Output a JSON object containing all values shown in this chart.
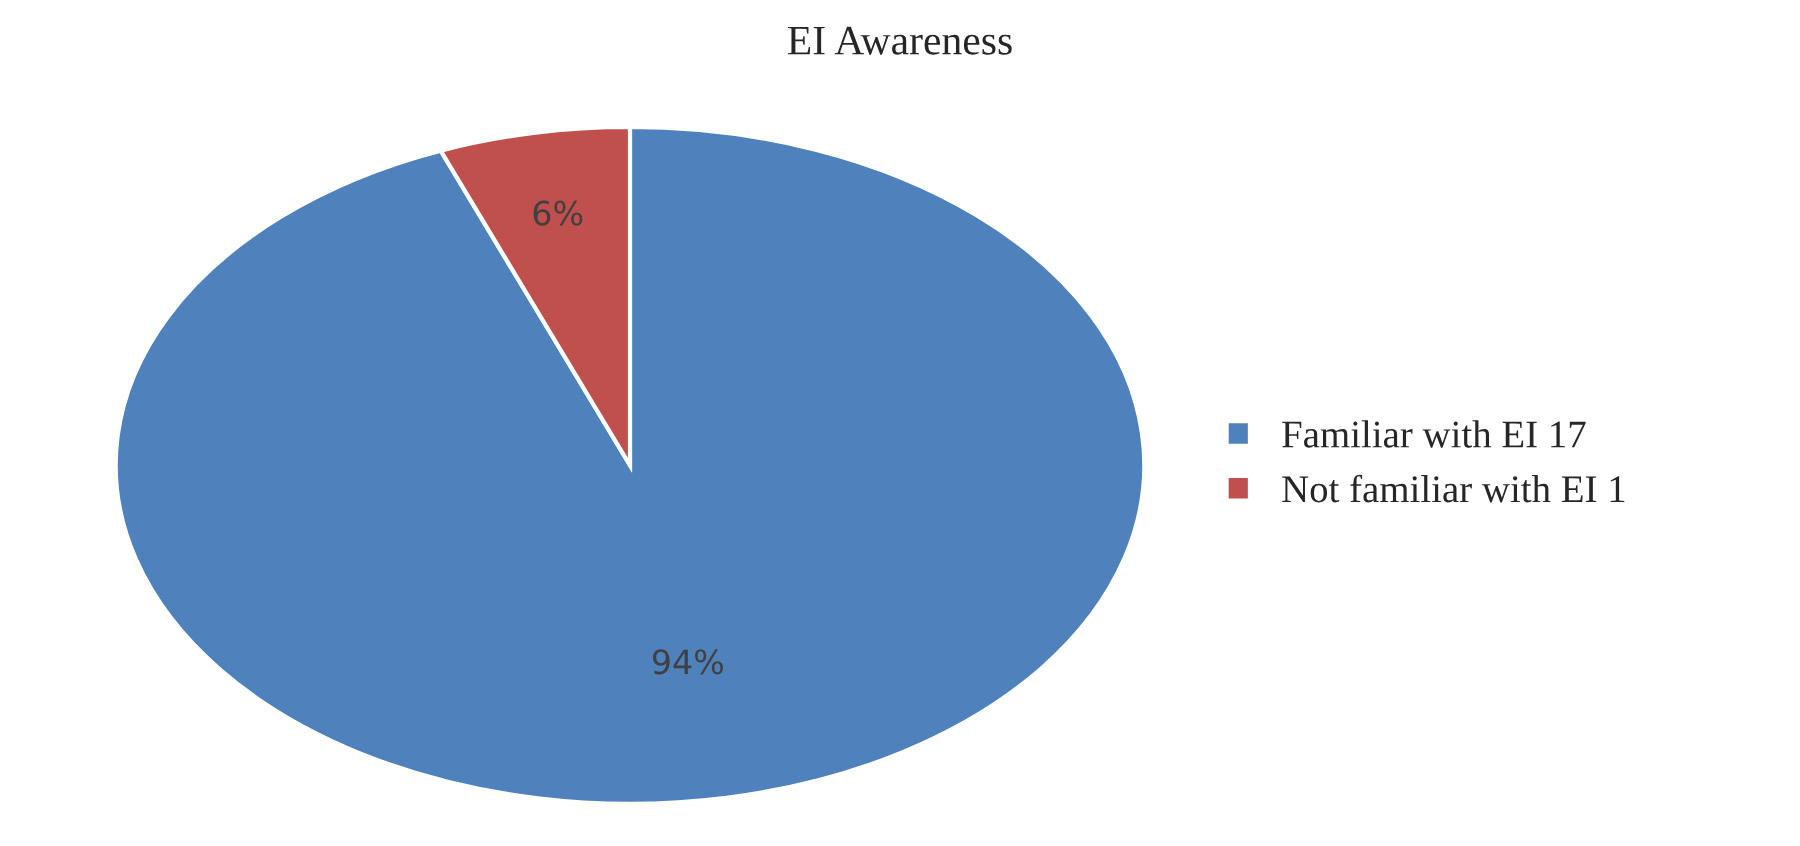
{
  "chart_data": {
    "type": "pie",
    "title": "EI Awareness",
    "categories": [
      "Familiar with EI 17",
      "Not familiar with EI 1"
    ],
    "values": [
      94,
      6
    ],
    "colors": [
      "#4f81bd",
      "#c0504d"
    ],
    "value_labels": [
      "94%",
      "6%"
    ],
    "legend": "right"
  }
}
